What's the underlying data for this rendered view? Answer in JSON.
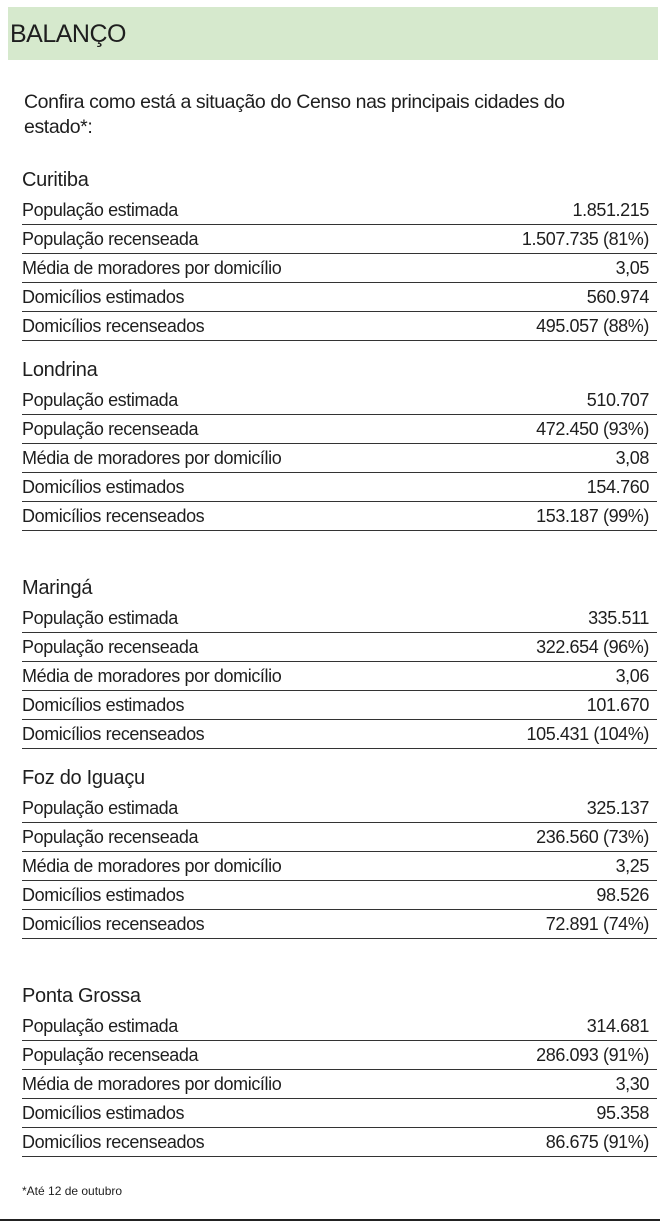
{
  "header": {
    "title": "BALANÇO",
    "background": "#d6e9cd"
  },
  "intro": "Confira como está a situação do Censo nas principais cidades do estado*:",
  "cities": [
    {
      "name": "Curitiba",
      "rows": [
        {
          "label": "População estimada",
          "value": "1.851.215"
        },
        {
          "label": "População recenseada",
          "value": "1.507.735 (81%)"
        },
        {
          "label": "Média de moradores por domicílio",
          "value": "3,05"
        },
        {
          "label": "Domicílios estimados",
          "value": "560.974"
        },
        {
          "label": "Domicílios recenseados",
          "value": "495.057 (88%)"
        }
      ]
    },
    {
      "name": "Londrina",
      "rows": [
        {
          "label": "População estimada",
          "value": "510.707"
        },
        {
          "label": "População recenseada",
          "value": "472.450 (93%)"
        },
        {
          "label": "Média de moradores por domicílio",
          "value": "3,08"
        },
        {
          "label": "Domicílios estimados",
          "value": "154.760"
        },
        {
          "label": "Domicílios recenseados",
          "value": "153.187 (99%)"
        }
      ]
    },
    {
      "name": "Maringá",
      "rows": [
        {
          "label": "População estimada",
          "value": "335.511"
        },
        {
          "label": "População recenseada",
          "value": "322.654 (96%)"
        },
        {
          "label": "Média de moradores por domicílio",
          "value": "3,06"
        },
        {
          "label": "Domicílios estimados",
          "value": "101.670"
        },
        {
          "label": "Domicílios recenseados",
          "value": "105.431 (104%)"
        }
      ]
    },
    {
      "name": "Foz do Iguaçu",
      "rows": [
        {
          "label": "População estimada",
          "value": "325.137"
        },
        {
          "label": "População recenseada",
          "value": "236.560 (73%)"
        },
        {
          "label": "Média de moradores por domicílio",
          "value": "3,25"
        },
        {
          "label": "Domicílios estimados",
          "value": "98.526"
        },
        {
          "label": "Domicílios recenseados",
          "value": "72.891 (74%)"
        }
      ]
    },
    {
      "name": "Ponta Grossa",
      "rows": [
        {
          "label": "População estimada",
          "value": "314.681"
        },
        {
          "label": "População recenseada",
          "value": "286.093 (91%)"
        },
        {
          "label": "Média de moradores por domicílio",
          "value": "3,30"
        },
        {
          "label": "Domicílios estimados",
          "value": "95.358"
        },
        {
          "label": "Domicílios recenseados",
          "value": "86.675 (91%)"
        }
      ]
    }
  ],
  "footnote": "*Até 12 de outubro"
}
